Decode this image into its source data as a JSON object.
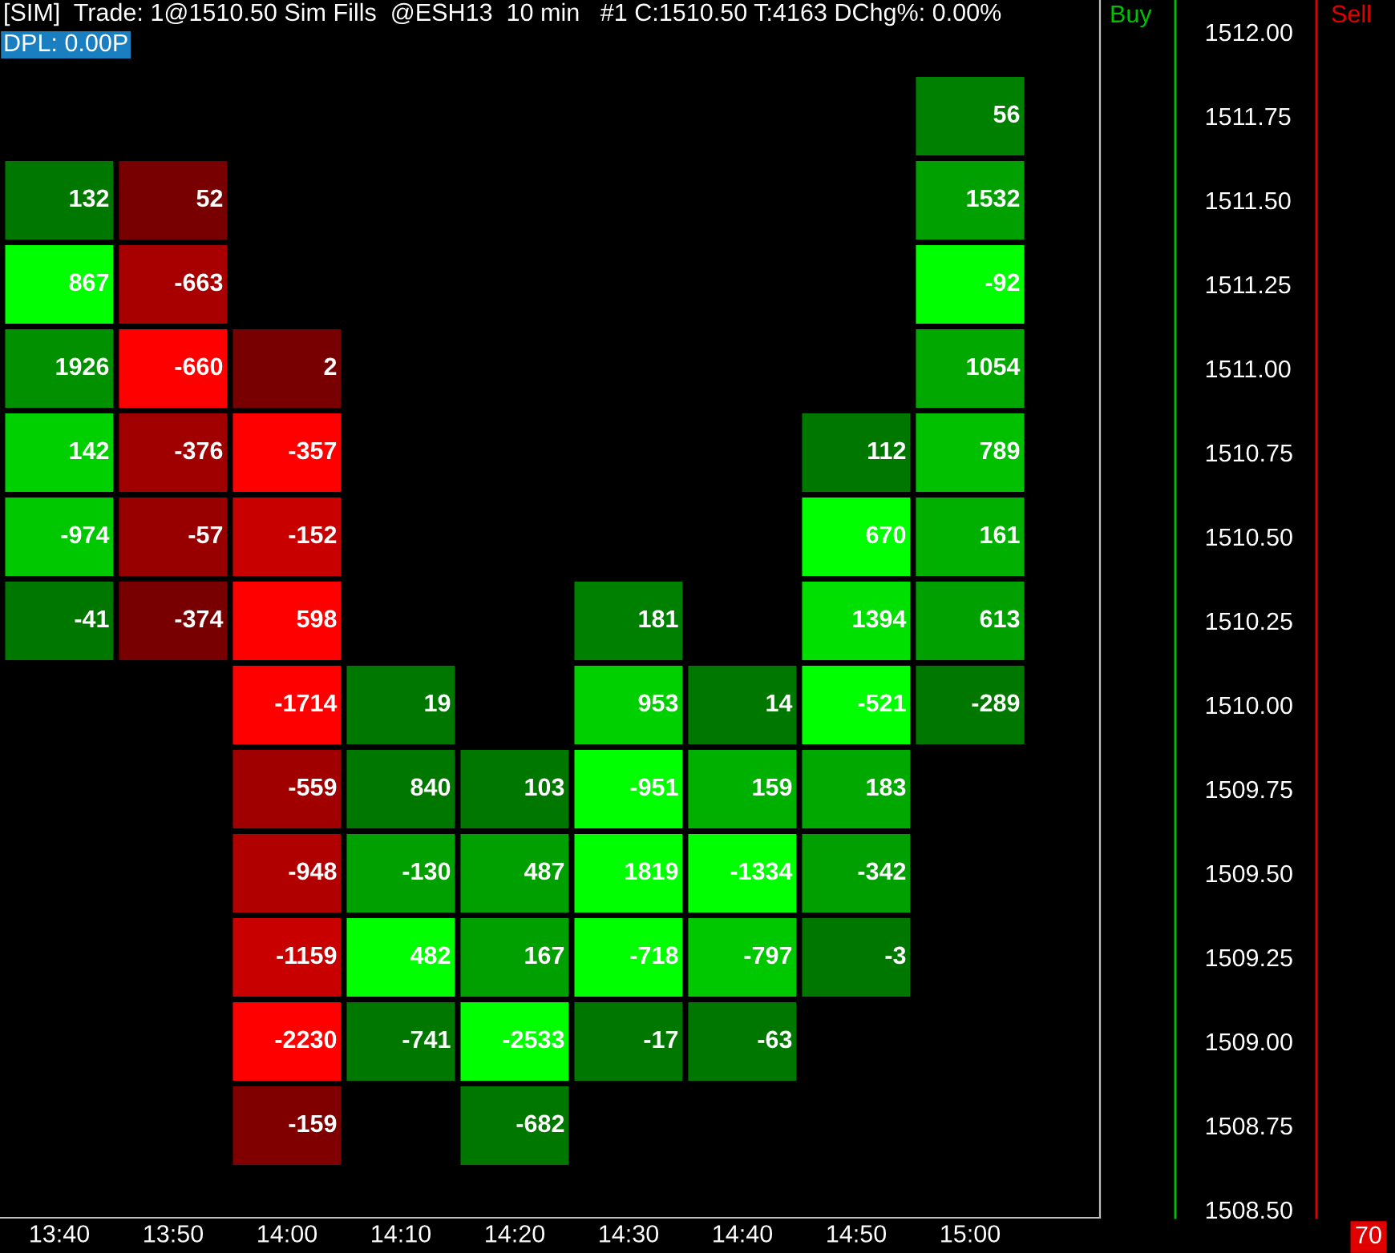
{
  "chart_data": {
    "type": "heatmap",
    "data_labels": true,
    "categories": [
      "13:40",
      "13:50",
      "14:00",
      "14:10",
      "14:20",
      "14:30",
      "14:40",
      "14:50",
      "15:00"
    ],
    "y_categories": [
      "1512.00",
      "1511.75",
      "1511.50",
      "1511.25",
      "1511.00",
      "1510.75",
      "1510.50",
      "1510.25",
      "1510.00",
      "1509.75",
      "1509.50",
      "1509.25",
      "1509.00",
      "1508.75",
      "1508.50"
    ],
    "cells": [
      [
        null,
        null,
        null,
        null,
        null,
        null,
        null,
        null,
        null
      ],
      [
        null,
        null,
        null,
        null,
        null,
        null,
        null,
        null,
        56
      ],
      [
        132,
        52,
        null,
        null,
        null,
        null,
        null,
        null,
        1532
      ],
      [
        867,
        -663,
        null,
        null,
        null,
        null,
        null,
        null,
        -92
      ],
      [
        1926,
        -660,
        2,
        null,
        null,
        null,
        null,
        null,
        1054
      ],
      [
        142,
        -376,
        -357,
        null,
        null,
        null,
        null,
        112,
        789
      ],
      [
        -974,
        -57,
        -152,
        null,
        null,
        null,
        null,
        670,
        161
      ],
      [
        -41,
        -374,
        598,
        null,
        null,
        181,
        null,
        1394,
        613
      ],
      [
        null,
        null,
        -1714,
        19,
        null,
        953,
        14,
        -521,
        -289
      ],
      [
        null,
        null,
        -559,
        840,
        103,
        -951,
        159,
        183,
        null
      ],
      [
        null,
        null,
        -948,
        -130,
        487,
        1819,
        -1334,
        -342,
        null
      ],
      [
        null,
        null,
        -1159,
        482,
        167,
        -718,
        -797,
        -3,
        null
      ],
      [
        null,
        null,
        -2230,
        -741,
        -2533,
        -17,
        -63,
        null,
        null
      ],
      [
        null,
        null,
        -159,
        null,
        -682,
        null,
        null,
        null,
        null
      ],
      [
        null,
        null,
        null,
        null,
        null,
        null,
        null,
        null,
        null
      ]
    ],
    "colors": [
      [
        null,
        null,
        null,
        null,
        null,
        null,
        null,
        null,
        null
      ],
      [
        null,
        null,
        null,
        null,
        null,
        null,
        null,
        null,
        "#008000"
      ],
      [
        "#007800",
        "#780000",
        null,
        null,
        null,
        null,
        null,
        null,
        "#00a000"
      ],
      [
        "#00ff00",
        "#a80000",
        null,
        null,
        null,
        null,
        null,
        null,
        "#00ff00"
      ],
      [
        "#009000",
        "#ff0000",
        "#780000",
        null,
        null,
        null,
        null,
        null,
        "#00a800"
      ],
      [
        "#00d000",
        "#a00000",
        "#ff0000",
        null,
        null,
        null,
        null,
        "#007800",
        "#00c000"
      ],
      [
        "#00c800",
        "#980000",
        "#c80000",
        null,
        null,
        null,
        null,
        "#00ff00",
        "#00b000"
      ],
      [
        "#007800",
        "#780000",
        "#ff0000",
        null,
        null,
        "#008000",
        null,
        "#00e000",
        "#00a000"
      ],
      [
        null,
        null,
        "#ff0000",
        "#007800",
        null,
        "#00d000",
        "#007800",
        "#00ff00",
        "#007800"
      ],
      [
        null,
        null,
        "#a00000",
        "#007800",
        "#007800",
        "#00ff00",
        "#00b000",
        "#00a800",
        null
      ],
      [
        null,
        null,
        "#b00000",
        "#00a000",
        "#00a000",
        "#00ff00",
        "#00ff00",
        "#00a000",
        null
      ],
      [
        null,
        null,
        "#c80000",
        "#00ff00",
        "#00a000",
        "#00ff00",
        "#00c800",
        "#007800",
        null
      ],
      [
        null,
        null,
        "#ff0000",
        "#007800",
        "#00ff00",
        "#007800",
        "#007800",
        null,
        null
      ],
      [
        null,
        null,
        "#800000",
        null,
        "#007800",
        null,
        null,
        null,
        null
      ],
      [
        null,
        null,
        null,
        null,
        null,
        null,
        null,
        null,
        null
      ]
    ],
    "annotations": [
      "[SIM]  Trade: 1@1510.50 Sim Fills  @ESH13  10 min   #1 C:1510.50 T:4163 DChg%: 0.00%",
      "DPL: 0.00P",
      "Buy",
      "Sell",
      "70"
    ]
  }
}
